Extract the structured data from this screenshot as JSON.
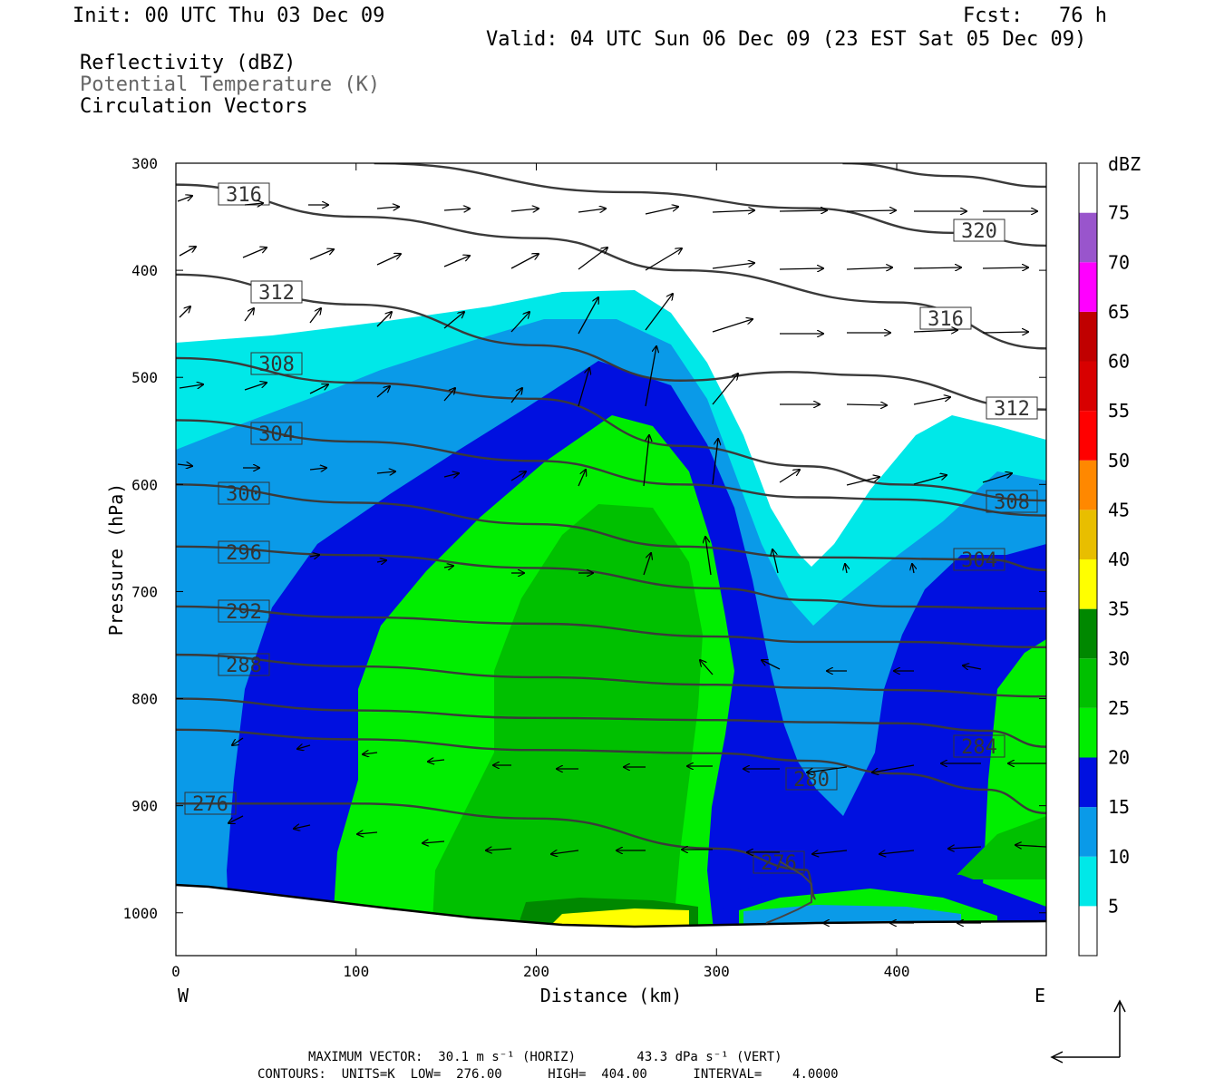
{
  "header": {
    "init": "Init: 00 UTC Thu 03 Dec 09",
    "fcst": "Fcst:   76 h",
    "valid": "Valid: 04 UTC Sun 06 Dec 09 (23 EST Sat 05 Dec 09)",
    "field1": "Reflectivity (dBZ)",
    "field2": "Potential Temperature (K)",
    "field3": "Circulation Vectors"
  },
  "footer": {
    "max_vector": "MAXIMUM VECTOR:  30.1 m s⁻¹ (HORIZ)        43.3 dPa s⁻¹ (VERT)",
    "contours": "CONTOURS:  UNITS=K  LOW=  276.00      HIGH=  404.00      INTERVAL=    4.0000"
  },
  "chart_data": {
    "type": "contour-cross-section",
    "xlabel": "Distance (km)",
    "ylabel": "Pressure (hPa)",
    "x_ticks": [
      0,
      100,
      200,
      300,
      400
    ],
    "x_range": [
      0,
      483
    ],
    "x_end_labels": [
      "W",
      "E"
    ],
    "y_ticks": [
      300,
      400,
      500,
      600,
      700,
      800,
      900,
      1000
    ],
    "y_range": [
      300,
      1040
    ],
    "y_inverted": true,
    "colorbar": {
      "unit": "dBZ",
      "levels": [
        5,
        10,
        15,
        20,
        25,
        30,
        35,
        40,
        45,
        50,
        55,
        60,
        65,
        70,
        75
      ],
      "colors": [
        "#ffffff",
        "#00e8e8",
        "#0a9ae8",
        "#0010e0",
        "#00ee00",
        "#00c000",
        "#008800",
        "#ffff00",
        "#e8be00",
        "#ff8800",
        "#ff0000",
        "#d80000",
        "#c00000",
        "#ff00ff",
        "#9955cc",
        "#ffffff"
      ]
    },
    "theta_contour_labels": [
      "316",
      "312",
      "308",
      "304",
      "300",
      "296",
      "292",
      "288",
      "276",
      "320",
      "316",
      "312",
      "308",
      "304",
      "284",
      "280",
      "276"
    ],
    "theta_contours": [
      {
        "value": 276,
        "points": [
          [
            0,
            898
          ],
          [
            100,
            898
          ],
          [
            200,
            912
          ],
          [
            300,
            940
          ],
          [
            350,
            960
          ],
          [
            355,
            987
          ]
        ]
      },
      {
        "value": 280,
        "points": [
          [
            0,
            829
          ],
          [
            100,
            838
          ],
          [
            200,
            848
          ],
          [
            300,
            851
          ],
          [
            350,
            858
          ],
          [
            400,
            870
          ],
          [
            450,
            885
          ],
          [
            483,
            907
          ]
        ]
      },
      {
        "value": 284,
        "points": [
          [
            0,
            800
          ],
          [
            100,
            811
          ],
          [
            200,
            818
          ],
          [
            300,
            820
          ],
          [
            350,
            822
          ],
          [
            400,
            823
          ],
          [
            450,
            830
          ],
          [
            483,
            845
          ]
        ]
      },
      {
        "value": 288,
        "points": [
          [
            0,
            759
          ],
          [
            100,
            770
          ],
          [
            200,
            780
          ],
          [
            300,
            787
          ],
          [
            350,
            790
          ],
          [
            400,
            792
          ],
          [
            483,
            798
          ]
        ]
      },
      {
        "value": 292,
        "points": [
          [
            0,
            714
          ],
          [
            100,
            724
          ],
          [
            200,
            730
          ],
          [
            300,
            742
          ],
          [
            350,
            747
          ],
          [
            400,
            747
          ],
          [
            483,
            752
          ]
        ]
      },
      {
        "value": 296,
        "points": [
          [
            0,
            658
          ],
          [
            100,
            666
          ],
          [
            200,
            678
          ],
          [
            300,
            697
          ],
          [
            350,
            708
          ],
          [
            400,
            714
          ],
          [
            483,
            716
          ]
        ]
      },
      {
        "value": 300,
        "points": [
          [
            0,
            600
          ],
          [
            100,
            617
          ],
          [
            200,
            637
          ],
          [
            280,
            658
          ],
          [
            350,
            668
          ],
          [
            450,
            670
          ],
          [
            483,
            680
          ]
        ]
      },
      {
        "value": 304,
        "points": [
          [
            0,
            540
          ],
          [
            100,
            560
          ],
          [
            200,
            578
          ],
          [
            280,
            600
          ],
          [
            350,
            612
          ],
          [
            400,
            614
          ],
          [
            483,
            629
          ]
        ]
      },
      {
        "value": 308,
        "points": [
          [
            0,
            482
          ],
          [
            100,
            505
          ],
          [
            200,
            520
          ],
          [
            280,
            564
          ],
          [
            350,
            583
          ],
          [
            400,
            600
          ],
          [
            483,
            615
          ]
        ]
      },
      {
        "value": 312,
        "points": [
          [
            0,
            404
          ],
          [
            100,
            432
          ],
          [
            200,
            470
          ],
          [
            280,
            503
          ],
          [
            340,
            495
          ],
          [
            380,
            498
          ],
          [
            483,
            530
          ]
        ]
      },
      {
        "value": 316,
        "points": [
          [
            0,
            320
          ],
          [
            100,
            350
          ],
          [
            200,
            370
          ],
          [
            280,
            400
          ],
          [
            400,
            430
          ],
          [
            483,
            473
          ]
        ]
      },
      {
        "value": 320,
        "points": [
          [
            110,
            300
          ],
          [
            250,
            327
          ],
          [
            350,
            342
          ],
          [
            430,
            365
          ],
          [
            483,
            377
          ]
        ]
      },
      {
        "value": 324,
        "points": [
          [
            370,
            300
          ],
          [
            430,
            312
          ],
          [
            483,
            322
          ]
        ]
      }
    ],
    "vector_scale": {
      "max_horiz": "30.1 m s-1",
      "max_vert": "43.3 dPa s-1"
    },
    "contour_info": {
      "units": "K",
      "low": 276.0,
      "high": 404.0,
      "interval": 4.0
    }
  }
}
